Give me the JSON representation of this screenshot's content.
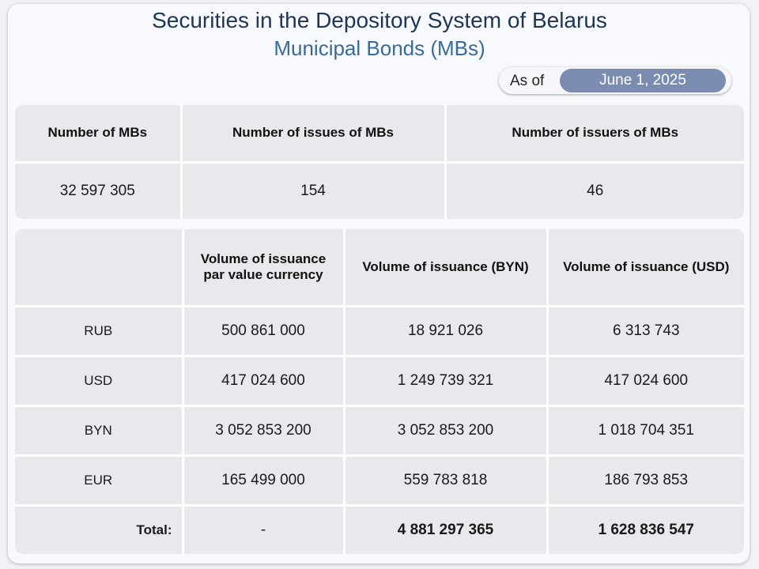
{
  "header": {
    "title": "Securities in the Depository System of Belarus",
    "subtitle": "Municipal Bonds (MBs)",
    "as_of_label": "As of",
    "as_of_date": "June 1, 2025"
  },
  "summary": {
    "headers": [
      "Number of MBs",
      "Number of issues of MBs",
      "Number of issuers of MBs"
    ],
    "values": [
      "32 597 305",
      "154",
      "46"
    ]
  },
  "volume": {
    "headers": [
      "",
      "Volume of issuance par value currency",
      "Volume of issuance (BYN)",
      "Volume of issuance (USD)"
    ],
    "rows": [
      {
        "currency": "RUB",
        "par": "500 861 000",
        "byn": "18 921 026",
        "usd": "6 313 743"
      },
      {
        "currency": "USD",
        "par": "417 024 600",
        "byn": "1 249 739 321",
        "usd": "417 024 600"
      },
      {
        "currency": "BYN",
        "par": "3 052 853 200",
        "byn": "3 052 853 200",
        "usd": "1 018 704 351"
      },
      {
        "currency": "EUR",
        "par": "165 499 000",
        "byn": "559 783 818",
        "usd": "186 793 853"
      }
    ],
    "total": {
      "label": "Total:",
      "par": "-",
      "byn": "4 881 297 365",
      "usd": "1 628 836 547"
    }
  },
  "colors": {
    "title": "#1f3556",
    "subtitle": "#3a6a98",
    "date_pill": "#7a8cb0",
    "table_bg": "#e8e9ed"
  }
}
